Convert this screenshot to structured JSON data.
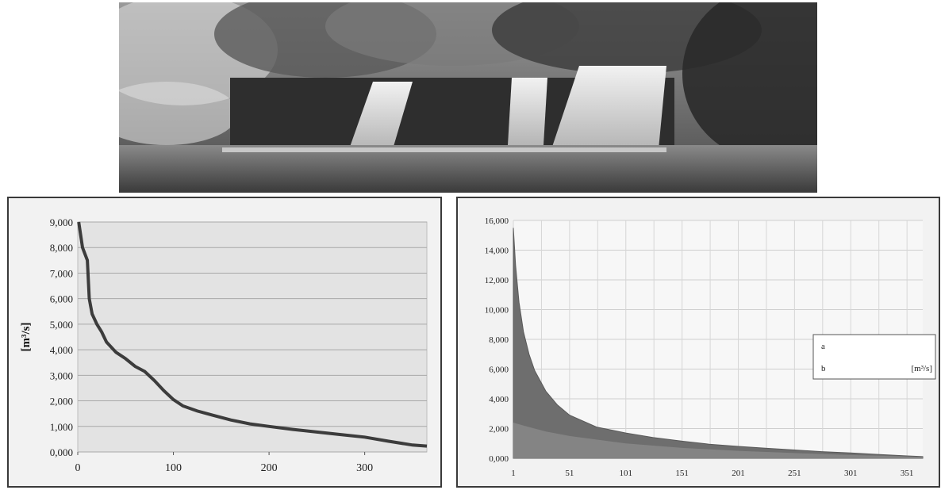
{
  "photo": {
    "subject": "waterfall over rock ledge with overhanging trees"
  },
  "colors": {
    "plot_bg_left": "#e3e3e3",
    "line_left": "#3c3c3c",
    "plot_bg_right": "#f7f7f7",
    "area_right": "#6e6e6e",
    "area_right_lower": "#8a8a8a",
    "grid": "#cfcfcf"
  },
  "chart_data": [
    {
      "type": "line",
      "title": "",
      "xlabel": "",
      "ylabel": "[m³/s]",
      "xlim": [
        0,
        365
      ],
      "ylim": [
        0,
        9000
      ],
      "x_ticks": [
        "0",
        "100",
        "200",
        "300"
      ],
      "y_ticks": [
        "0,000",
        "1,000",
        "2,000",
        "3,000",
        "4,000",
        "5,000",
        "6,000",
        "7,000",
        "8,000",
        "9,000"
      ],
      "grid": "horizontal",
      "series": [
        {
          "x": [
            1,
            5,
            10,
            12,
            15,
            20,
            25,
            30,
            40,
            50,
            60,
            70,
            80,
            90,
            100,
            110,
            125,
            140,
            160,
            180,
            200,
            225,
            250,
            275,
            300,
            325,
            350,
            365
          ],
          "values": [
            9000,
            8000,
            7500,
            6000,
            5400,
            5000,
            4700,
            4300,
            3900,
            3650,
            3350,
            3150,
            2800,
            2400,
            2050,
            1800,
            1600,
            1450,
            1250,
            1100,
            1000,
            880,
            780,
            680,
            580,
            420,
            270,
            230
          ]
        }
      ]
    },
    {
      "type": "area",
      "title": "",
      "xlabel": "",
      "ylabel": "",
      "xlim": [
        1,
        365
      ],
      "ylim": [
        0,
        16000
      ],
      "x_ticks": [
        "1",
        "51",
        "101",
        "151",
        "201",
        "251",
        "301",
        "351"
      ],
      "y_ticks": [
        "0,000",
        "2,000",
        "4,000",
        "6,000",
        "8,000",
        "10,000",
        "12,000",
        "14,000",
        "16,000"
      ],
      "grid": "both",
      "legend_position": "right",
      "legend": [
        {
          "key": "a",
          "unit": ""
        },
        {
          "key": "b",
          "unit": "[m³/s]"
        }
      ],
      "series": [
        {
          "x": [
            1,
            3,
            6,
            10,
            15,
            20,
            30,
            40,
            51,
            75,
            101,
            125,
            151,
            175,
            201,
            225,
            251,
            275,
            301,
            325,
            351,
            365
          ],
          "values": [
            15500,
            13000,
            10500,
            8500,
            7000,
            5900,
            4500,
            3600,
            2900,
            2100,
            1700,
            1400,
            1150,
            950,
            800,
            680,
            560,
            450,
            360,
            260,
            160,
            120
          ]
        },
        {
          "x": [
            1,
            10,
            30,
            51,
            101,
            151,
            201,
            251,
            301,
            351,
            365
          ],
          "values": [
            2400,
            2200,
            1800,
            1500,
            1000,
            700,
            500,
            350,
            220,
            120,
            90
          ]
        }
      ]
    }
  ]
}
